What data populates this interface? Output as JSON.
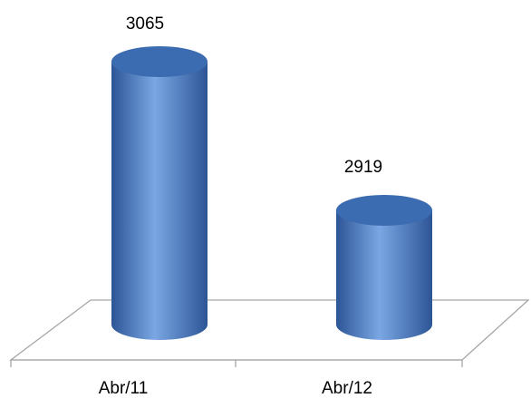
{
  "chart_data": {
    "type": "bar",
    "style": "3d-cylinder",
    "categories": [
      "Abr/11",
      "Abr/12"
    ],
    "values": [
      3065,
      2919
    ],
    "data_labels": [
      "3065",
      "2919"
    ],
    "title": "",
    "xlabel": "",
    "ylabel": "",
    "grid": false,
    "legend": "none",
    "colors": {
      "bar_body": "#4a7fc9",
      "bar_highlight": "#7aa7e4",
      "bar_shadow": "#2d5596",
      "bar_top": "#3b6bb0",
      "floor_line": "#a6a6a6"
    }
  }
}
